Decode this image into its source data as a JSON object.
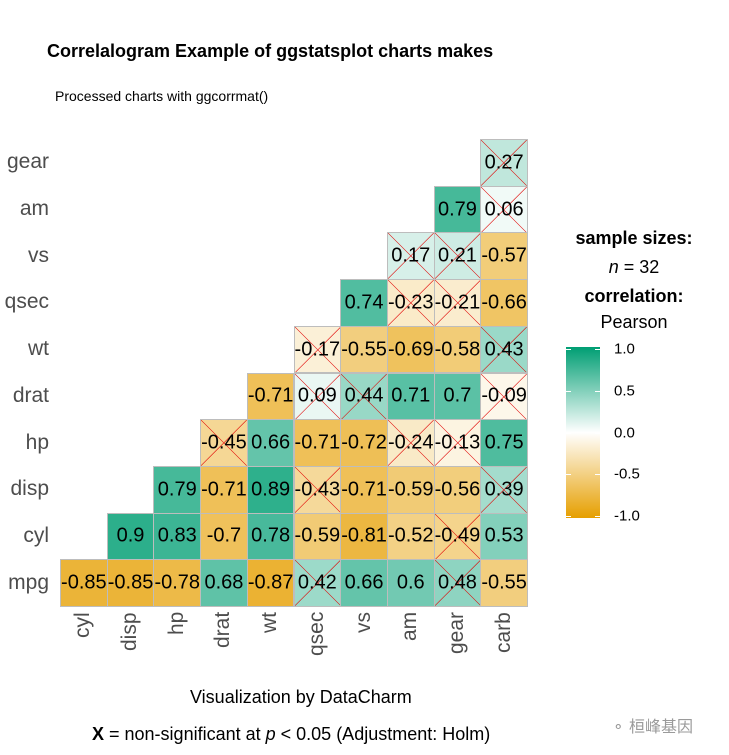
{
  "title": "Correlalogram Example of ggstatsplot charts makes",
  "subtitle": "Processed charts with ggcorrmat()",
  "caption": "Visualization by DataCharm",
  "footnote": {
    "x_symbol": "X",
    "text_before_p": " = non-significant at ",
    "p": "p",
    "text_after_p": " < 0.05 (Adjustment: Holm)"
  },
  "legend": {
    "sample_sizes_title": "sample sizes:",
    "n_label": "n",
    "n_value": "= 32",
    "correlation_title": "correlation:",
    "correlation_method": "Pearson",
    "ticks": [
      "1.0",
      "0.5",
      "0.0",
      "-0.5",
      "-1.0"
    ],
    "colors": {
      "high": "#009E73",
      "mid": "#FFFFFF",
      "low": "#E69F00"
    }
  },
  "watermark": "桓峰基因",
  "chart_data": {
    "type": "heatmap",
    "title": "Correlalogram Example of ggstatsplot charts makes",
    "subtitle": "Processed charts with ggcorrmat()",
    "x_labels": [
      "cyl",
      "disp",
      "hp",
      "drat",
      "wt",
      "qsec",
      "vs",
      "am",
      "gear",
      "carb"
    ],
    "y_labels": [
      "mpg",
      "cyl",
      "disp",
      "hp",
      "drat",
      "wt",
      "qsec",
      "vs",
      "am",
      "gear"
    ],
    "color_range": [
      -1.0,
      1.0
    ],
    "legend_position": "right",
    "cells": [
      {
        "row": "mpg",
        "values": [
          -0.85,
          -0.85,
          -0.78,
          0.68,
          -0.87,
          0.42,
          0.66,
          0.6,
          0.48,
          -0.55
        ],
        "nonsig": [
          false,
          false,
          false,
          false,
          false,
          true,
          false,
          false,
          true,
          false
        ]
      },
      {
        "row": "cyl",
        "values": [
          null,
          0.9,
          0.83,
          -0.7,
          0.78,
          -0.59,
          -0.81,
          -0.52,
          -0.49,
          0.53
        ],
        "nonsig": [
          false,
          false,
          false,
          false,
          false,
          false,
          false,
          false,
          true,
          false
        ]
      },
      {
        "row": "disp",
        "values": [
          null,
          null,
          0.79,
          -0.71,
          0.89,
          -0.43,
          -0.71,
          -0.59,
          -0.56,
          0.39
        ],
        "nonsig": [
          false,
          false,
          false,
          false,
          false,
          true,
          false,
          false,
          false,
          true
        ]
      },
      {
        "row": "hp",
        "values": [
          null,
          null,
          null,
          -0.45,
          0.66,
          -0.71,
          -0.72,
          -0.24,
          -0.13,
          0.75
        ],
        "nonsig": [
          false,
          false,
          false,
          true,
          false,
          false,
          false,
          true,
          true,
          false
        ]
      },
      {
        "row": "drat",
        "values": [
          null,
          null,
          null,
          null,
          -0.71,
          0.09,
          0.44,
          0.71,
          0.7,
          -0.09
        ],
        "nonsig": [
          false,
          false,
          false,
          false,
          false,
          true,
          true,
          false,
          false,
          true
        ]
      },
      {
        "row": "wt",
        "values": [
          null,
          null,
          null,
          null,
          null,
          -0.17,
          -0.55,
          -0.69,
          -0.58,
          0.43
        ],
        "nonsig": [
          false,
          false,
          false,
          false,
          false,
          true,
          false,
          false,
          false,
          true
        ]
      },
      {
        "row": "qsec",
        "values": [
          null,
          null,
          null,
          null,
          null,
          null,
          0.74,
          -0.23,
          -0.21,
          -0.66
        ],
        "nonsig": [
          false,
          false,
          false,
          false,
          false,
          false,
          false,
          true,
          true,
          false
        ]
      },
      {
        "row": "vs",
        "values": [
          null,
          null,
          null,
          null,
          null,
          null,
          null,
          0.17,
          0.21,
          -0.57
        ],
        "nonsig": [
          false,
          false,
          false,
          false,
          false,
          false,
          false,
          true,
          true,
          false
        ]
      },
      {
        "row": "am",
        "values": [
          null,
          null,
          null,
          null,
          null,
          null,
          null,
          null,
          0.79,
          0.06
        ],
        "nonsig": [
          false,
          false,
          false,
          false,
          false,
          false,
          false,
          false,
          false,
          true
        ]
      },
      {
        "row": "gear",
        "values": [
          null,
          null,
          null,
          null,
          null,
          null,
          null,
          null,
          null,
          0.27
        ],
        "nonsig": [
          false,
          false,
          false,
          false,
          false,
          false,
          false,
          false,
          false,
          true
        ]
      }
    ],
    "sample_size": 32,
    "correlation": "Pearson",
    "note": "X = non-significant at p < 0.05 (Adjustment: Holm)"
  }
}
